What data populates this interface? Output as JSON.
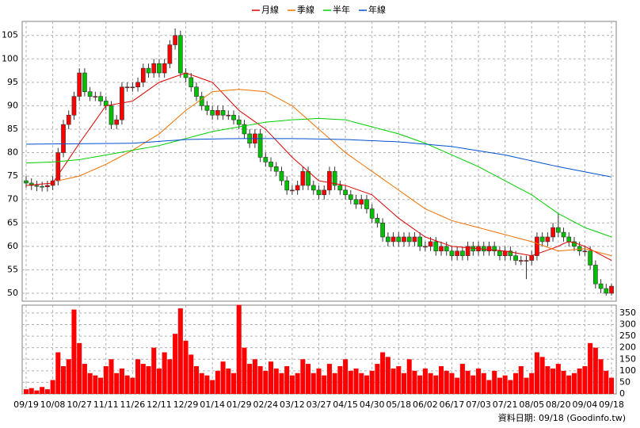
{
  "chart_data": {
    "type": "candlestick",
    "source": "資料日期: 09/18 (Goodinfo.tw)",
    "categories": [
      "09/19",
      null,
      null,
      null,
      null,
      "10/08",
      null,
      null,
      null,
      null,
      "10/27",
      null,
      null,
      null,
      null,
      "11/11",
      null,
      null,
      null,
      null,
      "11/26",
      null,
      null,
      null,
      null,
      "12/11",
      null,
      null,
      null,
      null,
      "12/29",
      null,
      null,
      null,
      null,
      "01/14",
      null,
      null,
      null,
      null,
      "01/29",
      null,
      null,
      null,
      null,
      "02/24",
      null,
      null,
      null,
      null,
      "03/12",
      null,
      null,
      null,
      null,
      "03/27",
      null,
      null,
      null,
      null,
      "04/15",
      null,
      null,
      null,
      null,
      "04/30",
      null,
      null,
      null,
      null,
      "05/18",
      null,
      null,
      null,
      null,
      "06/02",
      null,
      null,
      null,
      null,
      "06/17",
      null,
      null,
      null,
      null,
      "07/03",
      null,
      null,
      null,
      null,
      "07/21",
      null,
      null,
      null,
      null,
      "08/05",
      null,
      null,
      null,
      null,
      "08/20",
      null,
      null,
      null,
      null,
      "09/04",
      null,
      null,
      null,
      null,
      "09/18"
    ],
    "open": [
      74,
      73.5,
      73,
      72.8,
      72.7,
      73,
      74,
      80,
      86,
      88,
      92,
      97,
      93,
      92,
      92,
      91,
      90,
      86,
      87,
      94,
      94,
      94,
      95,
      98,
      97,
      99,
      97,
      99,
      103,
      105,
      97,
      96,
      94,
      92,
      90,
      89,
      88,
      89,
      88,
      88,
      87,
      86,
      84,
      82,
      84,
      79,
      78,
      77,
      76,
      74,
      72,
      72,
      73,
      76,
      73,
      72,
      71,
      72,
      76,
      73,
      72,
      71,
      70,
      69,
      70,
      68,
      66,
      65,
      62,
      61,
      62,
      61,
      62,
      61,
      62,
      60,
      60,
      61,
      59,
      60,
      59,
      58,
      59,
      58,
      60,
      59,
      60,
      59,
      60,
      59,
      58,
      59,
      58,
      57,
      57,
      57,
      58,
      62,
      61,
      62,
      64,
      63,
      62,
      61,
      60,
      59,
      59,
      56,
      52,
      51,
      50
    ],
    "high": [
      75,
      74.5,
      74,
      73.8,
      74,
      75,
      81,
      87,
      89,
      93,
      98,
      98,
      94,
      93,
      93,
      92,
      91,
      88,
      95,
      95,
      95,
      96,
      99,
      99,
      100,
      100,
      100,
      104,
      106.5,
      106,
      98,
      97,
      95,
      93,
      91,
      90,
      90,
      90,
      89,
      89,
      88,
      87,
      85,
      85,
      85,
      80,
      79,
      78,
      77,
      75,
      73,
      74,
      77,
      77,
      74,
      73,
      73,
      77,
      77,
      74,
      73,
      72,
      71,
      71,
      71,
      69,
      67,
      66,
      63,
      63,
      63,
      63,
      63,
      63,
      63,
      61,
      62,
      62,
      61,
      61,
      60,
      60,
      60,
      61,
      61,
      61,
      61,
      61,
      61,
      60,
      60,
      60,
      59,
      58,
      58,
      59,
      63,
      63,
      63,
      65,
      67,
      64,
      63,
      62,
      61,
      60,
      60,
      57,
      53,
      52,
      52
    ],
    "low": [
      72.5,
      72,
      71.8,
      71.7,
      71.7,
      72,
      73,
      79,
      85,
      87,
      91,
      92,
      91,
      91,
      90,
      89,
      85,
      85,
      86,
      93,
      93,
      93,
      94,
      96,
      96,
      96,
      96,
      98,
      102,
      96,
      95,
      93,
      91,
      89,
      88,
      87,
      87,
      87,
      87,
      86,
      85,
      83,
      81,
      81,
      78,
      77,
      76,
      75,
      73,
      71,
      71,
      71,
      72,
      72,
      71,
      70,
      70,
      71,
      72,
      71,
      70,
      69,
      68,
      68,
      67,
      65,
      64,
      61,
      60,
      60,
      60,
      60,
      60,
      60,
      59,
      59,
      59,
      58,
      58,
      58,
      57,
      57,
      57,
      57,
      58,
      58,
      58,
      58,
      58,
      57,
      57,
      57,
      56,
      56,
      53,
      56,
      57,
      60,
      60,
      61,
      62,
      61,
      60,
      59,
      58,
      58,
      55,
      51,
      50,
      49.5,
      49.5
    ],
    "close": [
      73.5,
      73,
      72.8,
      72.7,
      73,
      74,
      80,
      86,
      88,
      92,
      97,
      93,
      92,
      92,
      91,
      90,
      86,
      87,
      94,
      94,
      94,
      95,
      98,
      97,
      99,
      97,
      99,
      103,
      105,
      97,
      96,
      94,
      92,
      90,
      89,
      88,
      89,
      88,
      88,
      87,
      86,
      84,
      82,
      84,
      79,
      78,
      77,
      76,
      74,
      72,
      72,
      73,
      76,
      73,
      72,
      71,
      72,
      76,
      73,
      72,
      71,
      70,
      69,
      70,
      68,
      66,
      65,
      62,
      61,
      62,
      61,
      62,
      61,
      62,
      60,
      60,
      61,
      59,
      60,
      59,
      58,
      59,
      58,
      60,
      59,
      60,
      59,
      60,
      59,
      58,
      59,
      58,
      57,
      57,
      57,
      58,
      62,
      61,
      62,
      64,
      63,
      62,
      61,
      60,
      59,
      59,
      56,
      52,
      51,
      50,
      51.5
    ],
    "up_color": "#ff0000",
    "down_color": "#00c000",
    "ylim": [
      48.3,
      108
    ],
    "yticks": [
      50,
      55,
      60,
      65,
      70,
      75,
      80,
      85,
      90,
      95,
      100,
      105
    ],
    "grid": true,
    "series": [
      {
        "name": "月線",
        "color": "#e00000",
        "values": [
          73,
          73.1,
          73.2,
          73.3,
          73.4,
          73.5,
          75.2,
          76.9,
          78.6,
          80.3,
          82,
          83.6,
          85.2,
          86.8,
          88.4,
          90,
          90.2,
          90.4,
          90.6,
          90.8,
          91,
          91.8,
          92.6,
          93.4,
          94.2,
          95,
          95.4,
          95.8,
          96.2,
          96.6,
          97,
          96.6,
          96.2,
          95.8,
          95.4,
          95,
          93.8,
          92.6,
          91.4,
          90.2,
          89,
          88.2,
          87.4,
          86.6,
          85.8,
          85,
          83.8,
          82.6,
          81.4,
          80.2,
          79,
          78,
          77,
          76,
          75,
          74,
          73.8,
          73.6,
          73.4,
          73.2,
          73,
          72.6,
          72.2,
          71.8,
          71.4,
          71,
          70,
          69,
          68,
          67,
          66,
          65.2,
          64.4,
          63.6,
          62.8,
          62,
          61.6,
          61.2,
          60.8,
          60.4,
          60,
          59.9,
          59.8,
          59.7,
          59.6,
          59.5,
          59.4,
          59.3,
          59.2,
          59.1,
          59,
          58.8,
          58.6,
          58.4,
          58.2,
          58,
          58.4,
          58.8,
          59.2,
          59.6,
          60,
          60.6,
          61,
          60.8,
          60.4,
          60,
          59.4,
          58.8,
          58.2,
          57.6,
          57
        ]
      },
      {
        "name": "季線",
        "color": "#f07000",
        "values": [
          null,
          null,
          null,
          null,
          null,
          null,
          74,
          74.25,
          74.5,
          74.75,
          75,
          75.5,
          76,
          76.5,
          77,
          77.5,
          78.1,
          78.7,
          79.3,
          79.9,
          80.5,
          81.2,
          81.9,
          82.6,
          83.3,
          84,
          85,
          86,
          87,
          88,
          89,
          89.8,
          90.6,
          91.4,
          92.2,
          93,
          93.1,
          93.2,
          93.3,
          93.4,
          93.5,
          93.4,
          93.3,
          93.2,
          93.1,
          93,
          92.4,
          91.8,
          91.2,
          90.6,
          90,
          89,
          88,
          87,
          86,
          85,
          84,
          83,
          82,
          81,
          80,
          79.2,
          78.4,
          77.6,
          76.8,
          76,
          75.2,
          74.4,
          73.6,
          72.8,
          72,
          71.2,
          70.4,
          69.6,
          68.8,
          68,
          67.5,
          67,
          66.5,
          66,
          65.5,
          65.2,
          64.9,
          64.6,
          64.3,
          64,
          63.7,
          63.4,
          63.1,
          62.8,
          62.5,
          62.2,
          61.9,
          61.6,
          61.3,
          61,
          60.6,
          60.2,
          59.8,
          59.4,
          59,
          59.1,
          59.2,
          59.3,
          59.4,
          59.5,
          59.2,
          58.9,
          58.6,
          58.3,
          58
        ]
      },
      {
        "name": "半年",
        "color": "#00d000",
        "values": [
          77.8,
          77.84,
          77.88,
          77.92,
          77.96,
          78,
          78.1,
          78.2,
          78.3,
          78.4,
          78.5,
          78.7,
          78.9,
          79.1,
          79.3,
          79.5,
          79.7,
          79.9,
          80.1,
          80.3,
          80.5,
          80.7,
          80.9,
          81.1,
          81.3,
          81.5,
          81.8,
          82.1,
          82.4,
          82.7,
          83,
          83.3,
          83.6,
          83.9,
          84.2,
          84.5,
          84.7,
          84.9,
          85.1,
          85.3,
          85.5,
          85.7,
          85.9,
          86.1,
          86.3,
          86.5,
          86.6,
          86.7,
          86.8,
          86.9,
          87,
          87.06,
          87.12,
          87.18,
          87.24,
          87.3,
          87.24,
          87.18,
          87.12,
          87.06,
          87,
          86.7,
          86.4,
          86.1,
          85.8,
          85.5,
          85.2,
          84.9,
          84.6,
          84.3,
          84,
          83.6,
          83.2,
          82.8,
          82.4,
          82,
          81.5,
          81,
          80.5,
          80,
          79.5,
          79,
          78.5,
          78,
          77.5,
          77,
          76.4,
          75.8,
          75.2,
          74.6,
          74,
          73.4,
          72.8,
          72.2,
          71.6,
          71,
          70.2,
          69.4,
          68.6,
          67.8,
          67,
          66.4,
          65.8,
          65.2,
          64.6,
          64,
          63.6,
          63.2,
          62.8,
          62.4,
          62
        ]
      },
      {
        "name": "年線",
        "color": "#0050d0",
        "values": [
          81.8,
          81.81,
          81.82,
          81.83,
          81.84,
          81.85,
          81.86,
          81.87,
          81.88,
          81.89,
          81.9,
          81.91,
          81.92,
          81.93,
          81.94,
          81.95,
          81.96,
          81.97,
          81.98,
          81.99,
          82,
          82.08,
          82.16,
          82.24,
          82.32,
          82.4,
          82.48,
          82.56,
          82.64,
          82.72,
          82.8,
          82.82,
          82.84,
          82.86,
          82.88,
          82.9,
          82.92,
          82.94,
          82.96,
          82.98,
          83,
          83,
          83,
          83,
          83,
          83,
          83,
          83,
          83,
          83,
          83,
          82.98,
          82.96,
          82.94,
          82.92,
          82.9,
          82.88,
          82.86,
          82.84,
          82.82,
          82.8,
          82.75,
          82.7,
          82.65,
          82.6,
          82.55,
          82.5,
          82.45,
          82.4,
          82.35,
          82.3,
          82.2,
          82.1,
          82,
          81.9,
          81.8,
          81.7,
          81.6,
          81.5,
          81.4,
          81.3,
          81.12,
          80.94,
          80.76,
          80.58,
          80.4,
          80.22,
          80.04,
          79.86,
          79.68,
          79.5,
          79.25,
          79,
          78.75,
          78.5,
          78.25,
          78,
          77.75,
          77.5,
          77.25,
          77,
          76.78,
          76.56,
          76.34,
          76.12,
          75.9,
          75.68,
          75.46,
          75.24,
          75.02,
          74.8
        ]
      }
    ],
    "volume": {
      "color": "#ff0000",
      "ylim": [
        0,
        384
      ],
      "yticks": [
        0,
        50,
        100,
        150,
        200,
        250,
        300,
        350
      ],
      "values": [
        20,
        25,
        15,
        30,
        20,
        60,
        180,
        120,
        150,
        365,
        220,
        130,
        90,
        80,
        70,
        120,
        150,
        90,
        110,
        80,
        70,
        150,
        130,
        120,
        200,
        110,
        180,
        150,
        260,
        370,
        230,
        170,
        120,
        90,
        80,
        60,
        100,
        140,
        110,
        90,
        385,
        200,
        130,
        150,
        120,
        100,
        140,
        110,
        90,
        120,
        80,
        90,
        150,
        130,
        90,
        110,
        80,
        130,
        90,
        120,
        150,
        100,
        110,
        90,
        80,
        100,
        130,
        180,
        160,
        110,
        120,
        90,
        150,
        100,
        80,
        110,
        90,
        80,
        120,
        100,
        90,
        70,
        130,
        100,
        80,
        110,
        90,
        60,
        100,
        70,
        80,
        60,
        90,
        120,
        70,
        90,
        180,
        160,
        120,
        110,
        130,
        100,
        80,
        90,
        110,
        120,
        220,
        200,
        150,
        100,
        70
      ]
    }
  }
}
